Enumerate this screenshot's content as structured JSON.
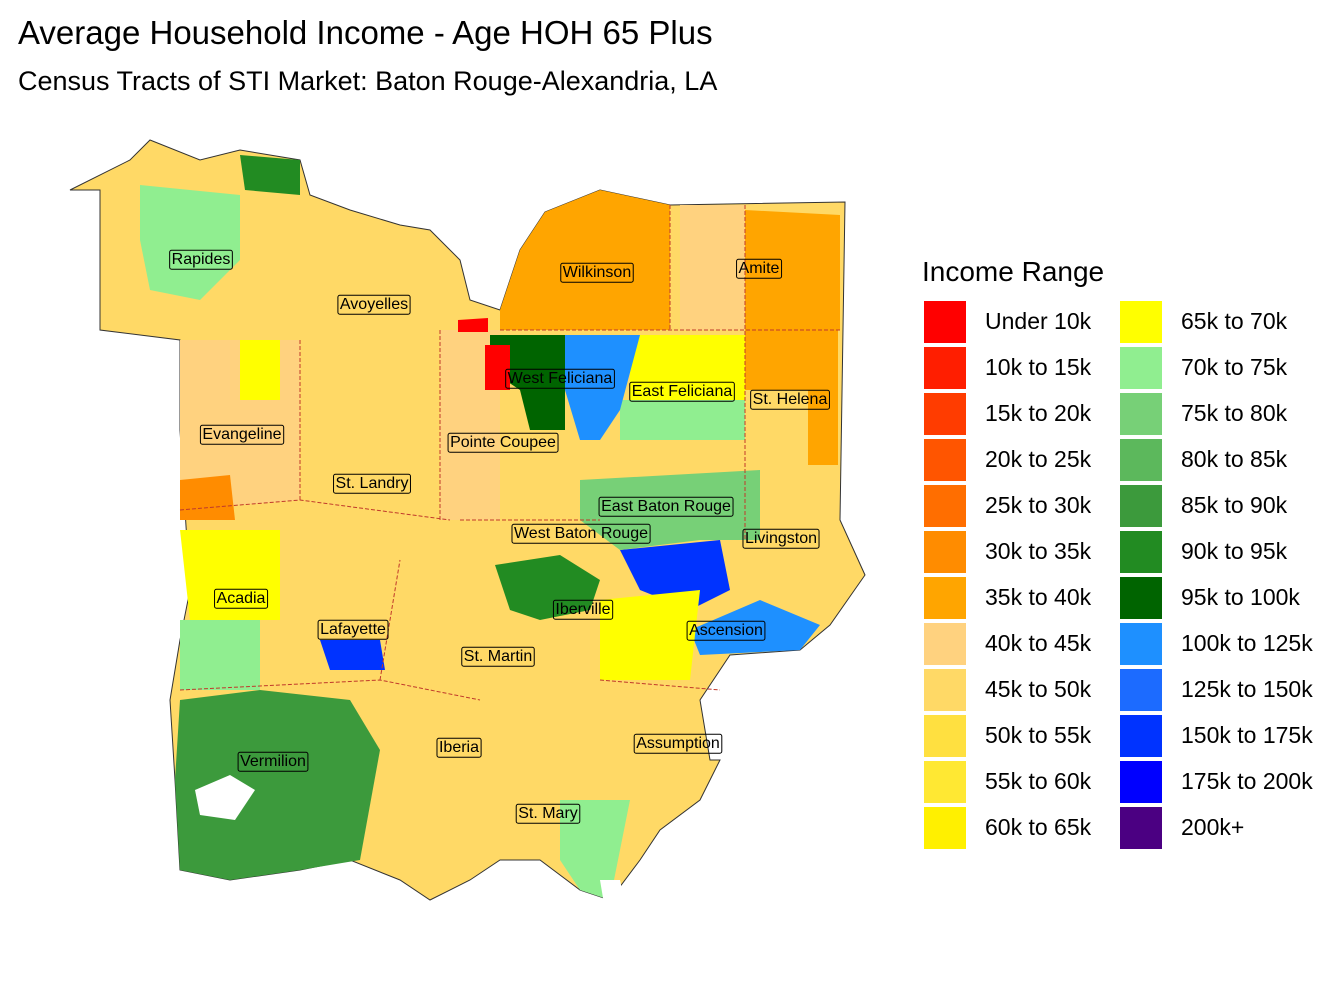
{
  "header": {
    "title": "Average Household Income - Age HOH 65 Plus",
    "subtitle": "Census Tracts of STI Market: Baton Rouge-Alexandria, LA"
  },
  "legend": {
    "title": "Income Range",
    "items": [
      {
        "label": "Under 10k",
        "color": "#FF0000"
      },
      {
        "label": "10k to 15k",
        "color": "#FF1E00"
      },
      {
        "label": "15k to 20k",
        "color": "#FF3C00"
      },
      {
        "label": "20k to 25k",
        "color": "#FF5500"
      },
      {
        "label": "25k to 30k",
        "color": "#FF6E00"
      },
      {
        "label": "30k to 35k",
        "color": "#FF8C00"
      },
      {
        "label": "35k to 40k",
        "color": "#FFA500"
      },
      {
        "label": "40k to 45k",
        "color": "#FFD27F"
      },
      {
        "label": "45k to 50k",
        "color": "#FFD966"
      },
      {
        "label": "50k to 55k",
        "color": "#FFE040"
      },
      {
        "label": "55k to 60k",
        "color": "#FFE833"
      },
      {
        "label": "60k to 65k",
        "color": "#FFF000"
      },
      {
        "label": "65k to 70k",
        "color": "#FFFF00"
      },
      {
        "label": "70k to 75k",
        "color": "#90EE90"
      },
      {
        "label": "75k to 80k",
        "color": "#77D077"
      },
      {
        "label": "80k to 85k",
        "color": "#5CB85C"
      },
      {
        "label": "85k to 90k",
        "color": "#3C9A3C"
      },
      {
        "label": "90k to 95k",
        "color": "#228B22"
      },
      {
        "label": "95k to 100k",
        "color": "#006400"
      },
      {
        "label": "100k to 125k",
        "color": "#1E90FF"
      },
      {
        "label": "125k to 150k",
        "color": "#1C6BFF"
      },
      {
        "label": "150k to 175k",
        "color": "#0033FF"
      },
      {
        "label": "175k to 200k",
        "color": "#0000FF"
      },
      {
        "label": "200k+",
        "color": "#4B0082"
      }
    ]
  },
  "parishes": [
    {
      "label": "Rapides"
    },
    {
      "label": "Avoyelles"
    },
    {
      "label": "Wilkinson"
    },
    {
      "label": "Amite"
    },
    {
      "label": "West Feliciana"
    },
    {
      "label": "East Feliciana"
    },
    {
      "label": "St. Helena"
    },
    {
      "label": "Evangeline"
    },
    {
      "label": "Pointe Coupee"
    },
    {
      "label": "St. Landry"
    },
    {
      "label": "East Baton Rouge"
    },
    {
      "label": "West Baton Rouge"
    },
    {
      "label": "Livingston"
    },
    {
      "label": "Acadia"
    },
    {
      "label": "Iberville"
    },
    {
      "label": "Ascension"
    },
    {
      "label": "Lafayette"
    },
    {
      "label": "St. Martin"
    },
    {
      "label": "Assumption"
    },
    {
      "label": "Iberia"
    },
    {
      "label": "Vermilion"
    },
    {
      "label": "St. Mary"
    }
  ]
}
